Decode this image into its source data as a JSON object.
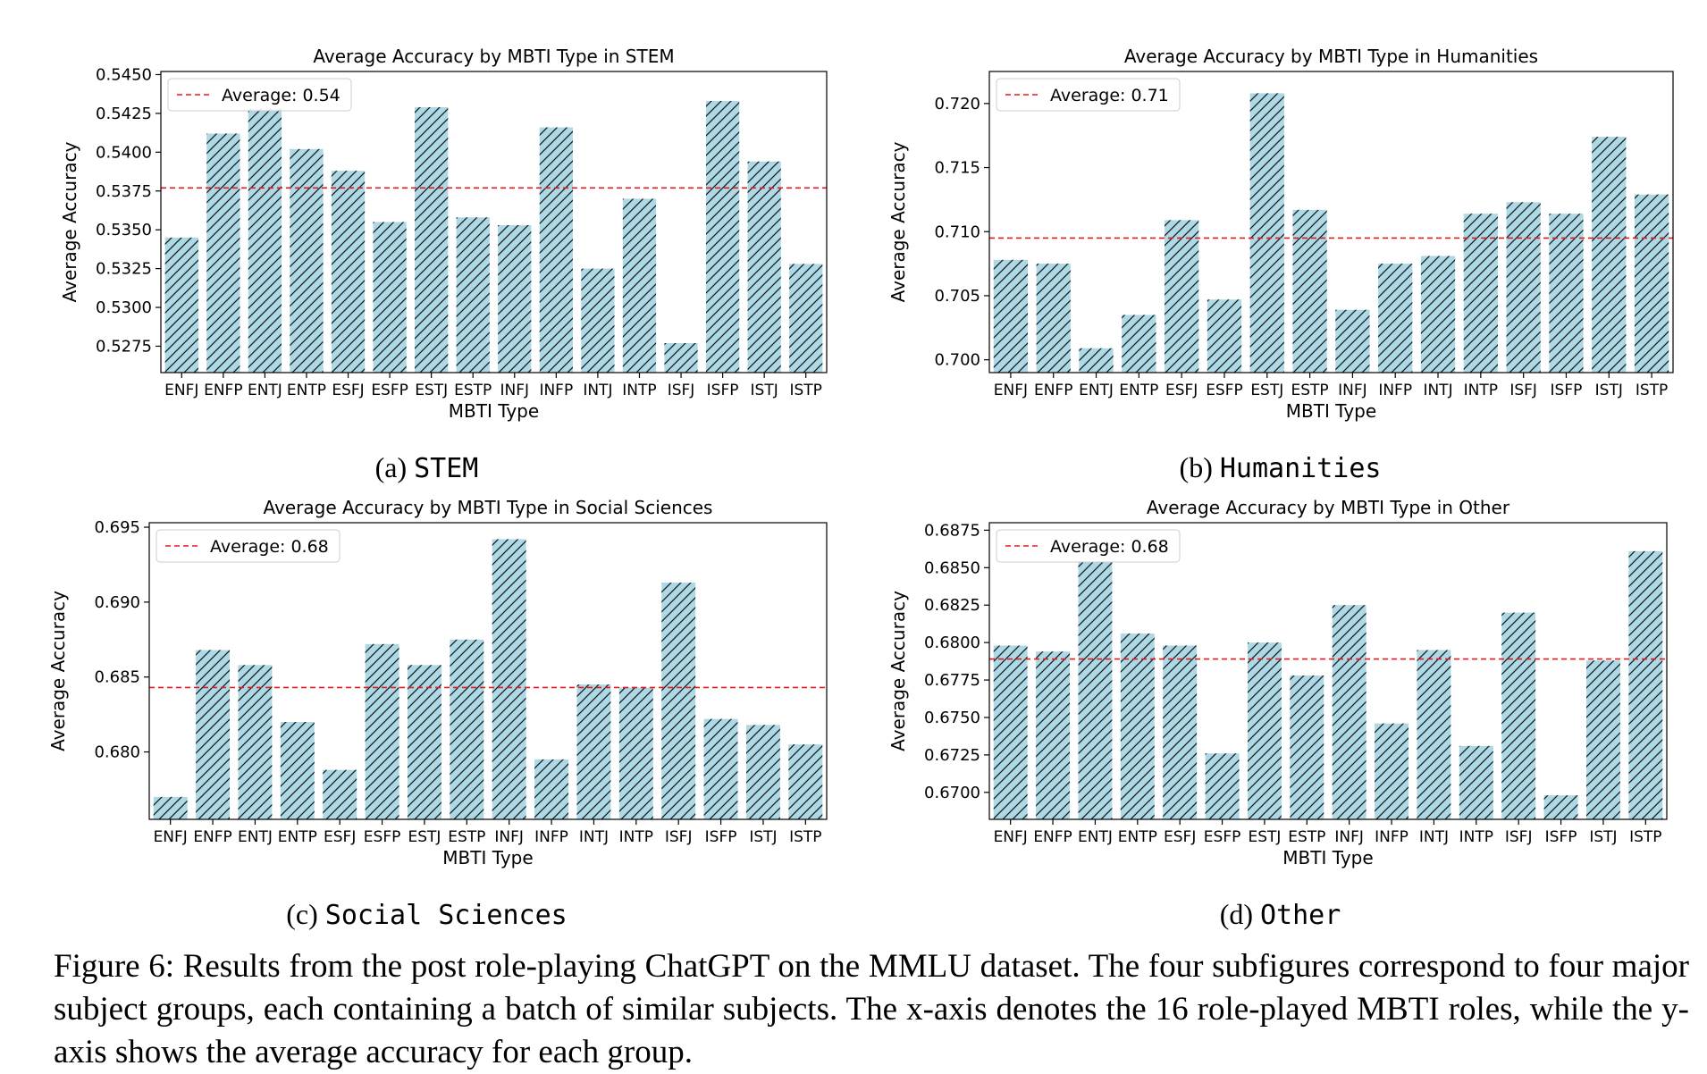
{
  "chart_data": [
    {
      "type": "bar",
      "title": "Average Accuracy by MBTI Type in STEM",
      "xlabel": "MBTI Type",
      "ylabel": "Average Accuracy",
      "categories": [
        "ENFJ",
        "ENFP",
        "ENTJ",
        "ENTP",
        "ESFJ",
        "ESFP",
        "ESTJ",
        "ESTP",
        "INFJ",
        "INFP",
        "INTJ",
        "INTP",
        "ISFJ",
        "ISFP",
        "ISTJ",
        "ISTP"
      ],
      "values": [
        0.5345,
        0.5412,
        0.5428,
        0.5402,
        0.5388,
        0.5355,
        0.5429,
        0.5358,
        0.5353,
        0.5416,
        0.5325,
        0.537,
        0.5277,
        0.5433,
        0.5394,
        0.5328
      ],
      "ylim": [
        0.5258,
        0.5452
      ],
      "yticks": [
        "0.5275",
        "0.5300",
        "0.5325",
        "0.5350",
        "0.5375",
        "0.5400",
        "0.5425",
        "0.5450"
      ],
      "average_value": 0.5377,
      "legend_label": "Average: 0.54",
      "legend_position": "top-left",
      "subcaption_prefix": "(a)",
      "subcaption": "STEM"
    },
    {
      "type": "bar",
      "title": "Average Accuracy by MBTI Type in Humanities",
      "xlabel": "MBTI Type",
      "ylabel": "Average Accuracy",
      "categories": [
        "ENFJ",
        "ENFP",
        "ENTJ",
        "ENTP",
        "ESFJ",
        "ESFP",
        "ESTJ",
        "ESTP",
        "INFJ",
        "INFP",
        "INTJ",
        "INTP",
        "ISFJ",
        "ISFP",
        "ISTJ",
        "ISTP"
      ],
      "values": [
        0.7078,
        0.7075,
        0.7009,
        0.7035,
        0.7109,
        0.7047,
        0.7208,
        0.7117,
        0.7039,
        0.7075,
        0.7081,
        0.7114,
        0.7123,
        0.7114,
        0.7174,
        0.7129
      ],
      "ylim": [
        0.699,
        0.7225
      ],
      "yticks": [
        "0.700",
        "0.705",
        "0.710",
        "0.715",
        "0.720"
      ],
      "average_value": 0.7095,
      "legend_label": "Average: 0.71",
      "legend_position": "top-left",
      "subcaption_prefix": "(b)",
      "subcaption": "Humanities"
    },
    {
      "type": "bar",
      "title": "Average Accuracy by MBTI Type in Social Sciences",
      "xlabel": "MBTI Type",
      "ylabel": "Average Accuracy",
      "categories": [
        "ENFJ",
        "ENFP",
        "ENTJ",
        "ENTP",
        "ESFJ",
        "ESFP",
        "ESTJ",
        "ESTP",
        "INFJ",
        "INFP",
        "INTJ",
        "INTP",
        "ISFJ",
        "ISFP",
        "ISTJ",
        "ISTP"
      ],
      "values": [
        0.677,
        0.6868,
        0.6858,
        0.682,
        0.6788,
        0.6872,
        0.6858,
        0.6875,
        0.6942,
        0.6795,
        0.6845,
        0.6843,
        0.6913,
        0.6822,
        0.6818,
        0.6805
      ],
      "ylim": [
        0.6755,
        0.6953
      ],
      "yticks": [
        "0.680",
        "0.685",
        "0.690",
        "0.695"
      ],
      "average_value": 0.6843,
      "legend_label": "Average: 0.68",
      "legend_position": "top-left",
      "subcaption_prefix": "(c)",
      "subcaption": "Social Sciences"
    },
    {
      "type": "bar",
      "title": "Average Accuracy by MBTI Type in Other",
      "xlabel": "MBTI Type",
      "ylabel": "Average Accuracy",
      "categories": [
        "ENFJ",
        "ENFP",
        "ENTJ",
        "ENTP",
        "ESFJ",
        "ESFP",
        "ESTJ",
        "ESTP",
        "INFJ",
        "INFP",
        "INTJ",
        "INTP",
        "ISFJ",
        "ISFP",
        "ISTJ",
        "ISTP"
      ],
      "values": [
        0.6798,
        0.6794,
        0.6854,
        0.6806,
        0.6798,
        0.6726,
        0.68,
        0.6778,
        0.6825,
        0.6746,
        0.6795,
        0.6731,
        0.682,
        0.6698,
        0.6788,
        0.6861
      ],
      "ylim": [
        0.6682,
        0.688
      ],
      "yticks": [
        "0.6700",
        "0.6725",
        "0.6750",
        "0.6775",
        "0.6800",
        "0.6825",
        "0.6850",
        "0.6875"
      ],
      "average_value": 0.6789,
      "legend_label": "Average: 0.68",
      "legend_position": "top-left",
      "subcaption_prefix": "(d)",
      "subcaption": "Other"
    }
  ],
  "colors": {
    "bar_fill": "#add8e6",
    "hatch": "#1a1a1a",
    "average_line": "#e8191c",
    "axis": "#000000"
  },
  "caption": "Figure 6: Results from the post role-playing ChatGPT on the MMLU dataset. The four subfigures correspond to four major subject groups, each containing a batch of similar subjects. The x-axis denotes the 16 role-played MBTI roles, while the y-axis shows the average accuracy for each group."
}
